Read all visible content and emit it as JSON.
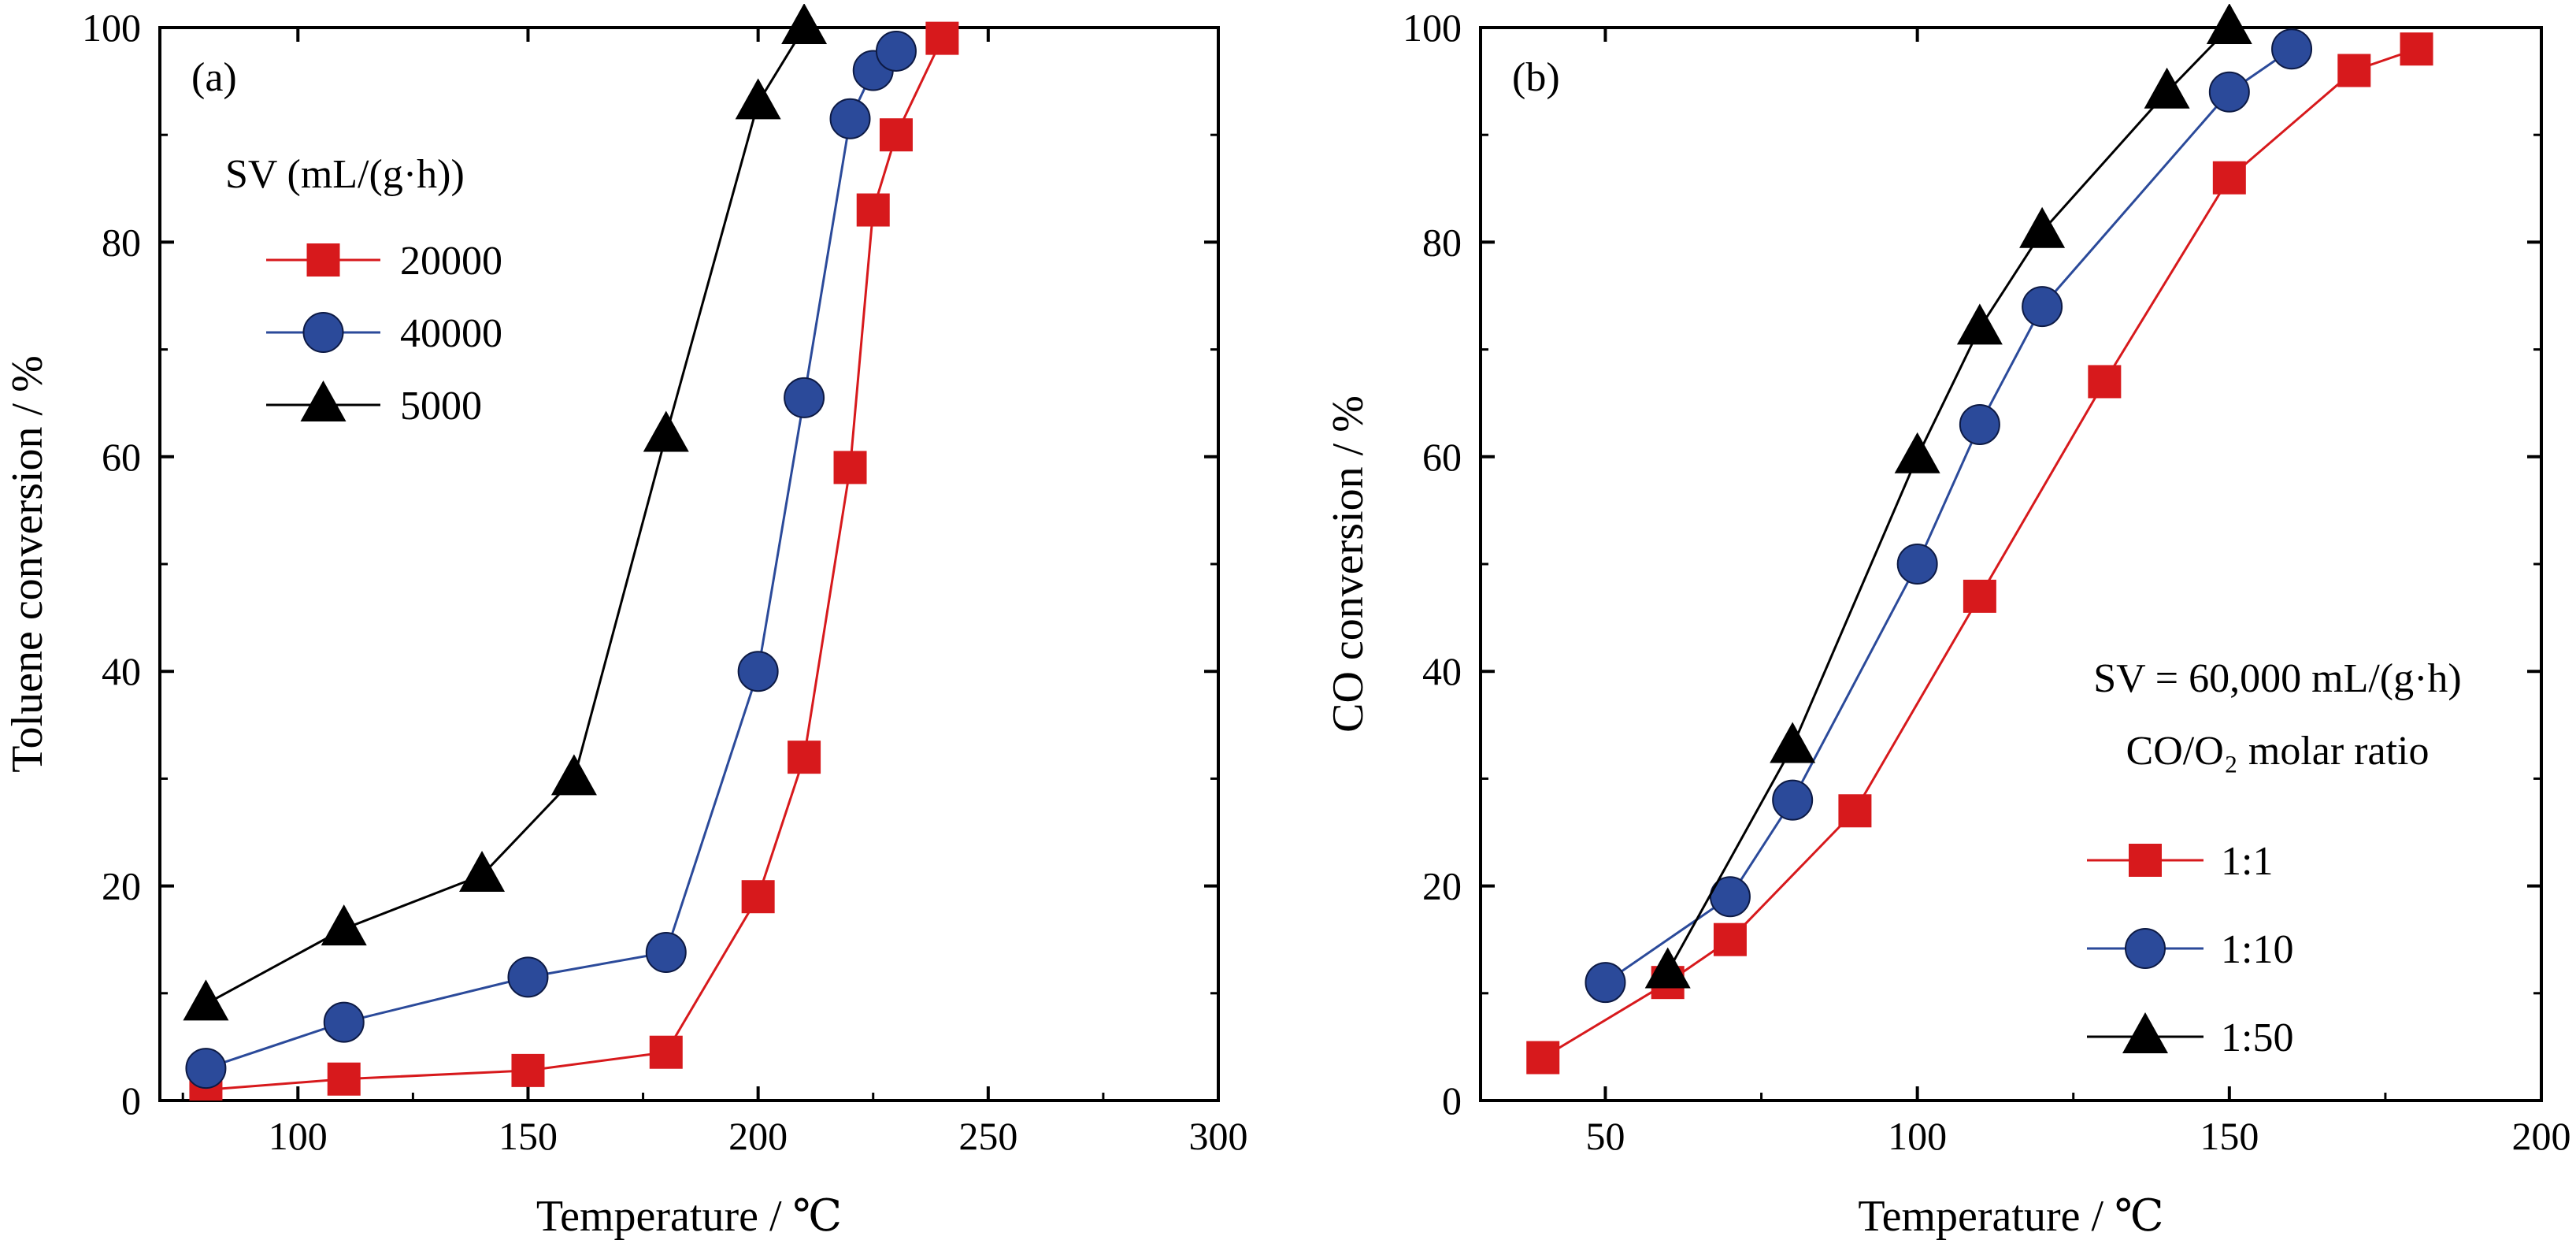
{
  "chart_data": [
    {
      "type": "line",
      "panel_label": "(a)",
      "xlabel": "Temperature / ℃",
      "ylabel": "Toluene conversion / %",
      "xlim": [
        70,
        300
      ],
      "ylim": [
        0,
        100
      ],
      "xticks": [
        100,
        150,
        200,
        250,
        300
      ],
      "yticks": [
        0,
        20,
        40,
        60,
        80,
        100
      ],
      "grid": false,
      "legend_title": "SV (mL/(g·h))",
      "legend_notes": [],
      "legend_placement": "top-left",
      "series": [
        {
          "name": "20000",
          "color": "#d7191c",
          "marker": "square",
          "x": [
            80,
            110,
            150,
            180,
            200,
            210,
            220,
            225,
            230,
            240
          ],
          "y": [
            1,
            2,
            2.8,
            4.5,
            19,
            32,
            59,
            83,
            90,
            99
          ]
        },
        {
          "name": "40000",
          "color": "#2b4a9a",
          "marker": "circle",
          "x": [
            80,
            110,
            150,
            180,
            200,
            210,
            220,
            225,
            230
          ],
          "y": [
            3,
            7.3,
            11.5,
            13.8,
            40,
            65.5,
            91.5,
            96,
            97.8
          ]
        },
        {
          "name": "5000",
          "color": "#000000",
          "marker": "triangle",
          "x": [
            80,
            110,
            140,
            160,
            180,
            200,
            210
          ],
          "y": [
            9,
            16,
            21,
            30,
            62,
            93,
            100
          ]
        }
      ]
    },
    {
      "type": "line",
      "panel_label": "(b)",
      "xlabel": "Temperature / ℃",
      "ylabel": "CO conversion / %",
      "xlim": [
        30,
        200
      ],
      "ylim": [
        0,
        100
      ],
      "xticks": [
        50,
        100,
        150,
        200
      ],
      "yticks": [
        0,
        20,
        40,
        60,
        80,
        100
      ],
      "grid": false,
      "legend_title": "",
      "legend_notes": [
        "SV = 60,000 mL/(g·h)",
        "CO/O₂ molar ratio"
      ],
      "legend_placement": "bottom-right",
      "series": [
        {
          "name": "1:1",
          "color": "#d7191c",
          "marker": "square",
          "x": [
            40,
            60,
            70,
            90,
            110,
            130,
            150,
            170,
            180
          ],
          "y": [
            4,
            11,
            15,
            27,
            47,
            67,
            86,
            96,
            98
          ]
        },
        {
          "name": "1:10",
          "color": "#2b4a9a",
          "marker": "circle",
          "x": [
            50,
            70,
            80,
            100,
            110,
            120,
            150,
            160
          ],
          "y": [
            11,
            19,
            28,
            50,
            63,
            74,
            94,
            98
          ]
        },
        {
          "name": "1:50",
          "color": "#000000",
          "marker": "triangle",
          "x": [
            60,
            80,
            100,
            110,
            120,
            140,
            150
          ],
          "y": [
            12,
            33,
            60,
            72,
            81,
            94,
            100
          ]
        }
      ]
    }
  ]
}
